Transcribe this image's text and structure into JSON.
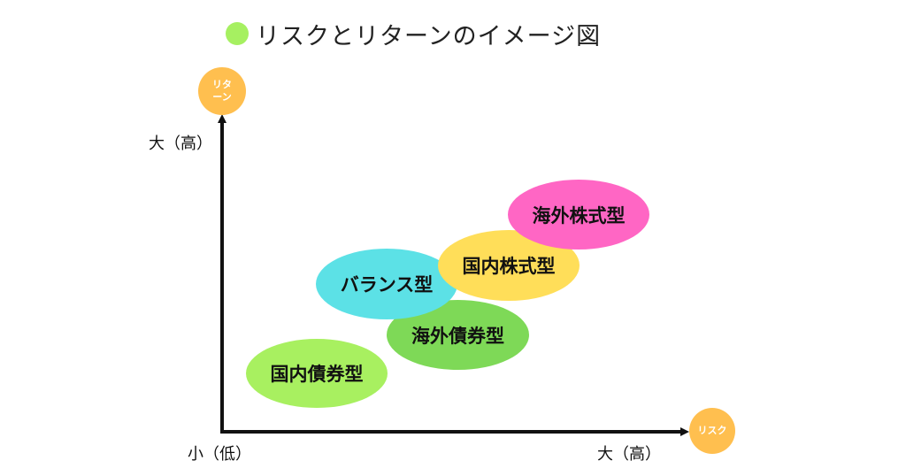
{
  "title": {
    "text": "リスクとリターンのイメージ図",
    "bullet_color": "#a6f061"
  },
  "axes": {
    "y_badge": "リタ\nーン",
    "x_badge": "リスク",
    "y_high_label": "大（高）",
    "origin_label": "小（低）",
    "x_high_label": "大（高）",
    "badge_color": "#ffbf4f"
  },
  "funds": [
    {
      "label": "国内債券型",
      "color": "#a8f060"
    },
    {
      "label": "海外債券型",
      "color": "#7ed957"
    },
    {
      "label": "バランス型",
      "color": "#5ce1e6"
    },
    {
      "label": "国内株式型",
      "color": "#ffde59"
    },
    {
      "label": "海外株式型",
      "color": "#ff66c4"
    }
  ]
}
